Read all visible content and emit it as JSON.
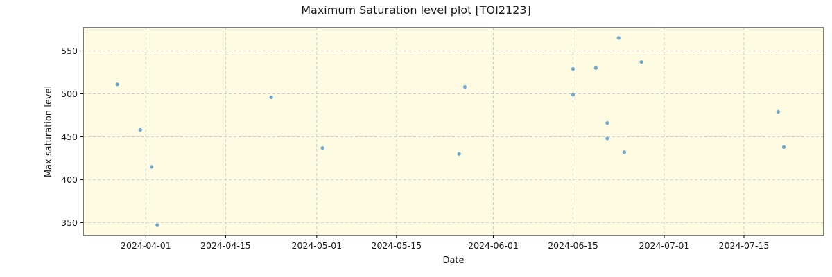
{
  "chart_data": {
    "type": "scatter",
    "title": "Maximum Saturation level plot [TOI2123]",
    "xlabel": "Date",
    "ylabel": "Max saturation level",
    "x_ticks": [
      "2024-04-01",
      "2024-04-15",
      "2024-05-01",
      "2024-05-15",
      "2024-06-01",
      "2024-06-15",
      "2024-07-01",
      "2024-07-15"
    ],
    "y_ticks": [
      350,
      400,
      450,
      500,
      550
    ],
    "xlim": [
      "2024-03-21",
      "2024-07-29"
    ],
    "ylim": [
      335,
      577
    ],
    "grid": true,
    "legend": null,
    "colors": {
      "background": "#fdfbe1",
      "marker": "#6fa8cc",
      "grid": "#cccccc",
      "axes": "#000000"
    },
    "points": [
      {
        "x": "2024-03-27",
        "y": 511
      },
      {
        "x": "2024-03-31",
        "y": 458
      },
      {
        "x": "2024-04-02",
        "y": 415
      },
      {
        "x": "2024-04-03",
        "y": 347
      },
      {
        "x": "2024-04-23",
        "y": 496
      },
      {
        "x": "2024-05-02",
        "y": 437
      },
      {
        "x": "2024-05-26",
        "y": 430
      },
      {
        "x": "2024-05-27",
        "y": 508
      },
      {
        "x": "2024-06-15",
        "y": 529
      },
      {
        "x": "2024-06-15",
        "y": 499
      },
      {
        "x": "2024-06-19",
        "y": 530
      },
      {
        "x": "2024-06-21",
        "y": 466
      },
      {
        "x": "2024-06-21",
        "y": 448
      },
      {
        "x": "2024-06-23",
        "y": 565
      },
      {
        "x": "2024-06-24",
        "y": 432
      },
      {
        "x": "2024-06-27",
        "y": 537
      },
      {
        "x": "2024-07-21",
        "y": 479
      },
      {
        "x": "2024-07-22",
        "y": 438
      }
    ]
  }
}
